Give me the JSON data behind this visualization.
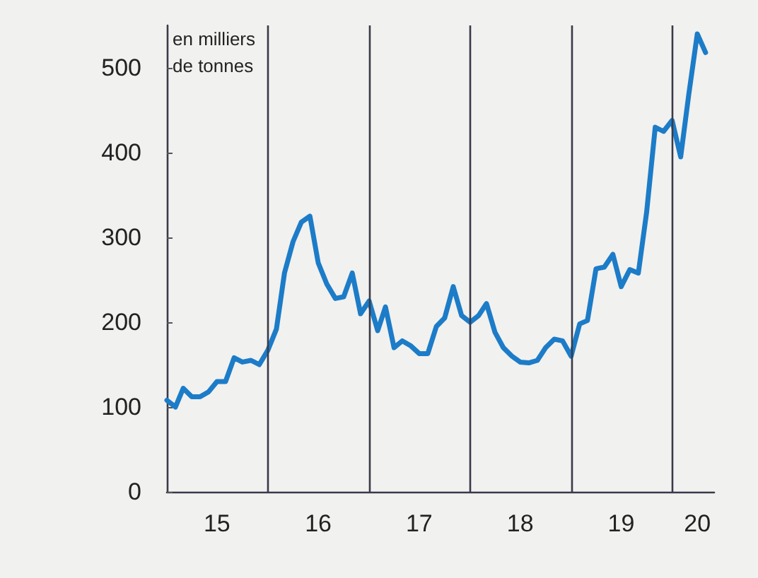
{
  "chart_data": {
    "type": "line",
    "ylabel": "en milliers\nde tonnes",
    "x": [
      "2015-01",
      "2015-02",
      "2015-03",
      "2015-04",
      "2015-05",
      "2015-06",
      "2015-07",
      "2015-08",
      "2015-09",
      "2015-10",
      "2015-11",
      "2015-12",
      "2016-01",
      "2016-02",
      "2016-03",
      "2016-04",
      "2016-05",
      "2016-06",
      "2016-07",
      "2016-08",
      "2016-09",
      "2016-10",
      "2016-11",
      "2016-12",
      "2017-01",
      "2017-02",
      "2017-03",
      "2017-04",
      "2017-05",
      "2017-06",
      "2017-07",
      "2017-08",
      "2017-09",
      "2017-10",
      "2017-11",
      "2017-12",
      "2018-01",
      "2018-02",
      "2018-03",
      "2018-04",
      "2018-05",
      "2018-06",
      "2018-07",
      "2018-08",
      "2018-09",
      "2018-10",
      "2018-11",
      "2018-12",
      "2019-01",
      "2019-02",
      "2019-03",
      "2019-04",
      "2019-05",
      "2019-06",
      "2019-07",
      "2019-08",
      "2019-09",
      "2019-10",
      "2019-11",
      "2019-12",
      "2020-01",
      "2020-02",
      "2020-03",
      "2020-04",
      "2020-05"
    ],
    "series": [
      {
        "color": "#1c7cc8",
        "values": [
          108,
          100,
          122,
          112,
          112,
          118,
          130,
          130,
          158,
          153,
          155,
          150,
          167,
          192,
          258,
          295,
          318,
          325,
          270,
          245,
          228,
          230,
          258,
          210,
          225,
          190,
          218,
          170,
          178,
          172,
          163,
          163,
          195,
          205,
          242,
          208,
          200,
          208,
          222,
          188,
          170,
          160,
          153,
          152,
          155,
          170,
          180,
          178,
          160,
          198,
          202,
          263,
          265,
          280,
          242,
          262,
          258,
          330,
          430,
          425,
          438,
          395,
          468,
          540,
          518
        ]
      }
    ],
    "xlim": [
      "2015-01",
      "2020-06"
    ],
    "xticks": [
      {
        "value": "2015-07",
        "label": "15"
      },
      {
        "value": "2016-07",
        "label": "16"
      },
      {
        "value": "2017-07",
        "label": "17"
      },
      {
        "value": "2018-07",
        "label": "18"
      },
      {
        "value": "2019-07",
        "label": "19"
      },
      {
        "value": "2020-04",
        "label": "20"
      }
    ],
    "ylim": [
      0,
      550
    ],
    "yticks": [
      0,
      100,
      200,
      300,
      400,
      500
    ],
    "ref_lines": [
      {
        "axis": "x",
        "value": "2016-01",
        "color": "#3a3a4a"
      },
      {
        "axis": "x",
        "value": "2017-01",
        "color": "#3a3a4a"
      },
      {
        "axis": "x",
        "value": "2018-01",
        "color": "#3a3a4a"
      },
      {
        "axis": "x",
        "value": "2019-01",
        "color": "#3a3a4a"
      },
      {
        "axis": "x",
        "value": "2020-01",
        "color": "#3a3a4a"
      }
    ],
    "grid": false,
    "marker": "none",
    "line_style": "solid"
  }
}
